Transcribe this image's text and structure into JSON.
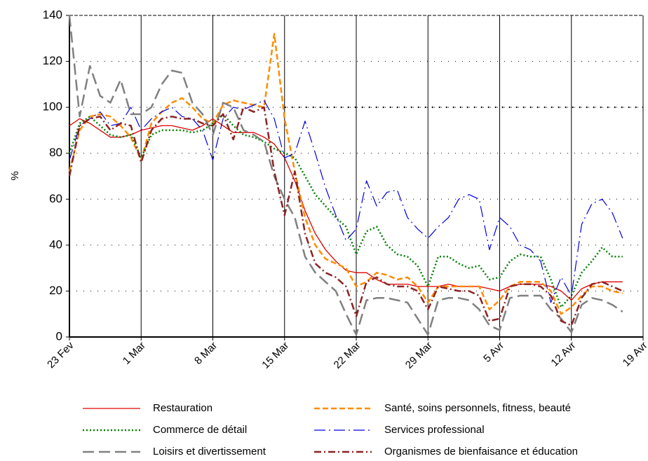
{
  "chart_data": {
    "type": "line",
    "y_label": "%",
    "categories": [
      "23 Fev",
      null,
      null,
      null,
      null,
      null,
      null,
      "1 Mar",
      null,
      null,
      null,
      null,
      null,
      null,
      "8 Mar",
      null,
      null,
      null,
      null,
      null,
      null,
      "15 Mar",
      null,
      null,
      null,
      null,
      null,
      null,
      "22 Mar",
      null,
      null,
      null,
      null,
      null,
      null,
      "29 Mar",
      null,
      null,
      null,
      null,
      null,
      null,
      "5 Avr",
      null,
      null,
      null,
      null,
      null,
      null,
      "12 Avr",
      null,
      null,
      null,
      null,
      null,
      null,
      "19 Avr"
    ],
    "ylim": [
      0,
      140
    ],
    "yticks": [
      0,
      20,
      40,
      60,
      80,
      100,
      120,
      140
    ],
    "grid": true,
    "reference_line": 100,
    "series": [
      {
        "name": "Restauration",
        "color": "#e00000",
        "values": [
          92,
          95,
          93,
          90,
          87,
          87,
          88,
          90,
          91,
          92,
          92,
          91,
          90,
          92,
          95,
          92,
          89,
          89,
          89,
          87,
          84,
          78,
          68,
          55,
          45,
          38,
          33,
          29,
          28,
          28,
          25,
          23,
          23,
          23,
          22,
          22,
          22,
          23,
          22,
          22,
          22,
          21,
          20,
          22,
          23,
          23,
          23,
          22,
          20,
          16,
          21,
          23,
          24,
          24,
          24,
          null,
          null
        ]
      },
      {
        "name": "Santé, soins personnels, fitness, beauté",
        "color": "#ff8c00",
        "values": [
          72,
          90,
          96,
          97,
          96,
          92,
          87,
          77,
          93,
          98,
          102,
          104,
          100,
          95,
          93,
          101,
          103,
          102,
          101,
          100,
          132,
          95,
          72,
          52,
          40,
          34,
          32,
          30,
          22,
          24,
          28,
          27,
          25,
          26,
          22,
          15,
          22,
          22,
          22,
          22,
          22,
          12,
          16,
          22,
          24,
          24,
          24,
          20,
          10,
          13,
          18,
          22,
          22,
          20,
          19,
          null,
          null
        ]
      },
      {
        "name": "Commerce de détail",
        "color": "#008000",
        "values": [
          80,
          93,
          96,
          92,
          88,
          87,
          88,
          78,
          88,
          90,
          90,
          90,
          89,
          90,
          93,
          97,
          92,
          88,
          87,
          85,
          82,
          80,
          78,
          70,
          62,
          57,
          52,
          48,
          36,
          46,
          48,
          40,
          36,
          35,
          31,
          22,
          35,
          35,
          32,
          30,
          31,
          25,
          26,
          33,
          36,
          35,
          35,
          25,
          13,
          18,
          28,
          33,
          39,
          35,
          35,
          null,
          null
        ]
      },
      {
        "name": "Services professional",
        "color": "#0000e0",
        "values": [
          77,
          92,
          95,
          98,
          92,
          93,
          100,
          90,
          95,
          98,
          100,
          96,
          95,
          90,
          77,
          95,
          100,
          99,
          101,
          103,
          95,
          78,
          80,
          94,
          80,
          65,
          53,
          42,
          47,
          68,
          57,
          63,
          64,
          52,
          47,
          43,
          48,
          52,
          60,
          62,
          60,
          38,
          52,
          48,
          40,
          38,
          33,
          15,
          26,
          18,
          49,
          58,
          60,
          54,
          43,
          null,
          null
        ]
      },
      {
        "name": "Loisirs et divertissement",
        "color": "#808080",
        "values": [
          140,
          96,
          118,
          105,
          102,
          112,
          97,
          97,
          100,
          110,
          116,
          115,
          102,
          97,
          88,
          102,
          100,
          90,
          88,
          85,
          70,
          60,
          52,
          35,
          28,
          24,
          20,
          10,
          1,
          16,
          17,
          17,
          16,
          15,
          8,
          1,
          16,
          17,
          17,
          16,
          12,
          5,
          3,
          17,
          18,
          18,
          18,
          12,
          8,
          2,
          14,
          17,
          16,
          14,
          11,
          null,
          null
        ]
      },
      {
        "name": "Organismes de bienfaisance et éducation",
        "color": "#8b2323",
        "values": [
          70,
          92,
          95,
          96,
          90,
          93,
          92,
          76,
          90,
          95,
          96,
          95,
          95,
          93,
          92,
          97,
          86,
          100,
          98,
          100,
          72,
          53,
          72,
          45,
          32,
          28,
          26,
          22,
          9,
          24,
          26,
          23,
          22,
          22,
          20,
          12,
          22,
          21,
          20,
          20,
          18,
          7,
          8,
          22,
          23,
          23,
          22,
          18,
          7,
          5,
          17,
          23,
          24,
          22,
          20,
          null,
          null
        ]
      }
    ]
  }
}
